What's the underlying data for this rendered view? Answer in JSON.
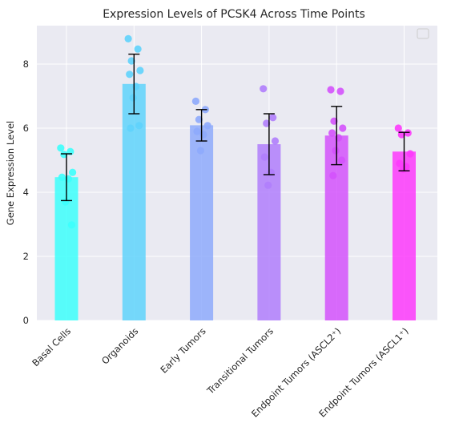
{
  "chart_data": {
    "type": "bar",
    "title": "Expression Levels of PCSK4 Across Time Points",
    "xlabel": "",
    "ylabel": "Gene Expression Level",
    "ylim": [
      0,
      9.2
    ],
    "yticks": [
      0,
      2,
      4,
      6,
      8
    ],
    "grid": true,
    "legend": "top-right",
    "categories": [
      "Basal Cells",
      "Organoids",
      "Early Tumors",
      "Transitional Tumors",
      "Endpoint Tumors (ASCL2⁺)",
      "Endpoint Tumors (ASCL1⁺)"
    ],
    "values": [
      4.47,
      7.38,
      6.09,
      5.5,
      5.77,
      5.27
    ],
    "errors": [
      0.73,
      0.93,
      0.49,
      0.95,
      0.91,
      0.6
    ],
    "colors": [
      "#3dfffc",
      "#5fd3fc",
      "#8eaafc",
      "#b07efc",
      "#d452fc",
      "#fd3afc"
    ],
    "points": [
      [
        5.38,
        5.27,
        5.18,
        4.62,
        4.47,
        4.42,
        3.7,
        2.98
      ],
      [
        8.79,
        8.47,
        8.1,
        7.8,
        7.68,
        7.3,
        6.95,
        6.08,
        6.0
      ],
      [
        6.84,
        6.58,
        6.27,
        6.08,
        5.9,
        5.8,
        5.3
      ],
      [
        7.23,
        6.33,
        6.15,
        5.6,
        5.1,
        4.62,
        4.22
      ],
      [
        7.2,
        7.15,
        6.22,
        6.0,
        5.85,
        5.7,
        5.3,
        5.0,
        4.52
      ],
      [
        6.0,
        5.85,
        5.8,
        5.2,
        4.9,
        4.8,
        4.72
      ]
    ]
  }
}
